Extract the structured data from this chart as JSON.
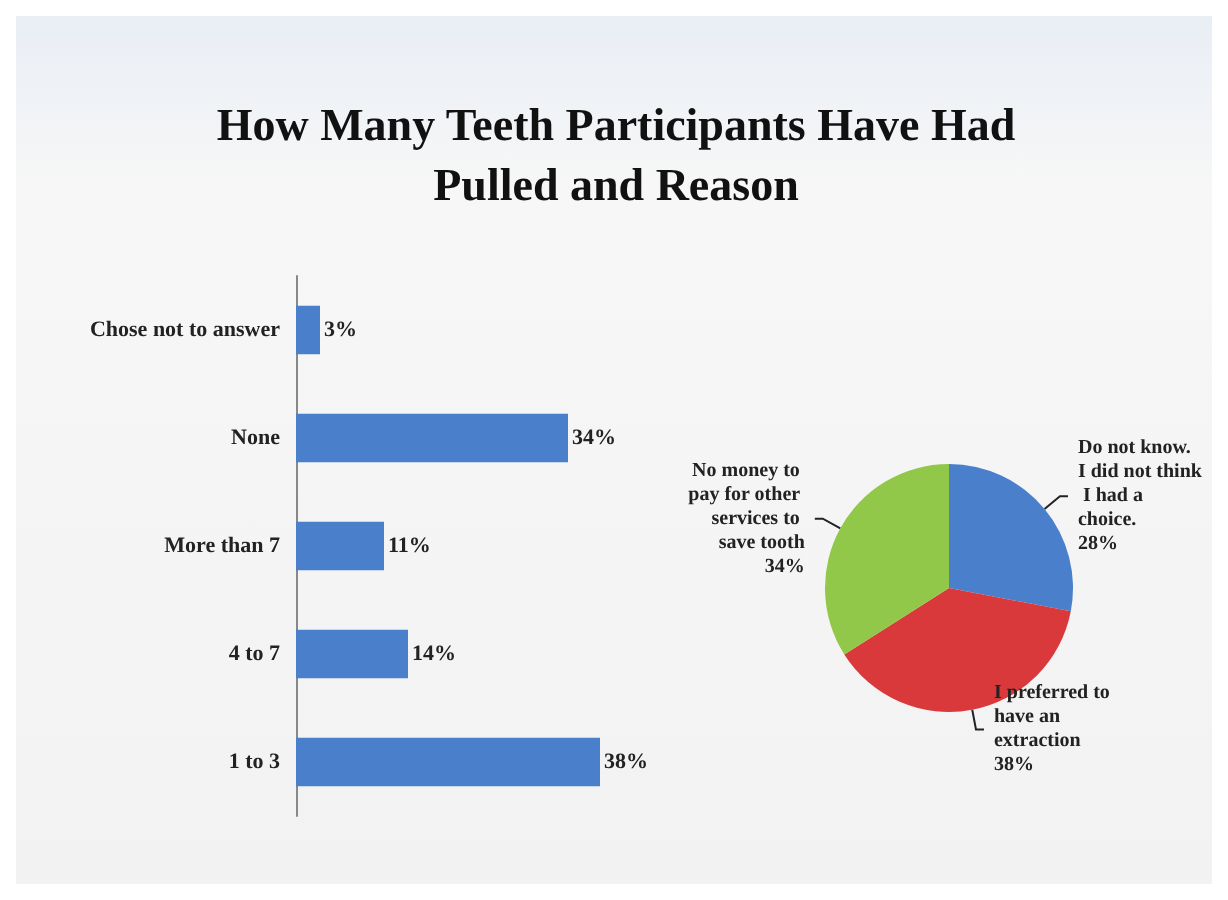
{
  "chart_data": [
    {
      "type": "bar",
      "title": "How Many Teeth Participants Have Had Pulled and Reason",
      "orientation": "horizontal",
      "categories": [
        "Chose not to answer",
        "None",
        "More than 7",
        "4 to 7",
        "1 to 3"
      ],
      "values": [
        3,
        34,
        11,
        14,
        38
      ],
      "value_labels": [
        "3%",
        "34%",
        "11%",
        "14%",
        "38%"
      ],
      "color": "#4a7fcc"
    },
    {
      "type": "pie",
      "categories": [
        "Do not know. I did not think I had a choice.",
        "I preferred to have an extraction",
        "No money to pay for other services to save tooth"
      ],
      "values": [
        28,
        38,
        34
      ],
      "value_labels": [
        "28%",
        "38%",
        "34%"
      ],
      "colors": [
        "#4a7fcc",
        "#d9393a",
        "#92c84a"
      ]
    }
  ]
}
